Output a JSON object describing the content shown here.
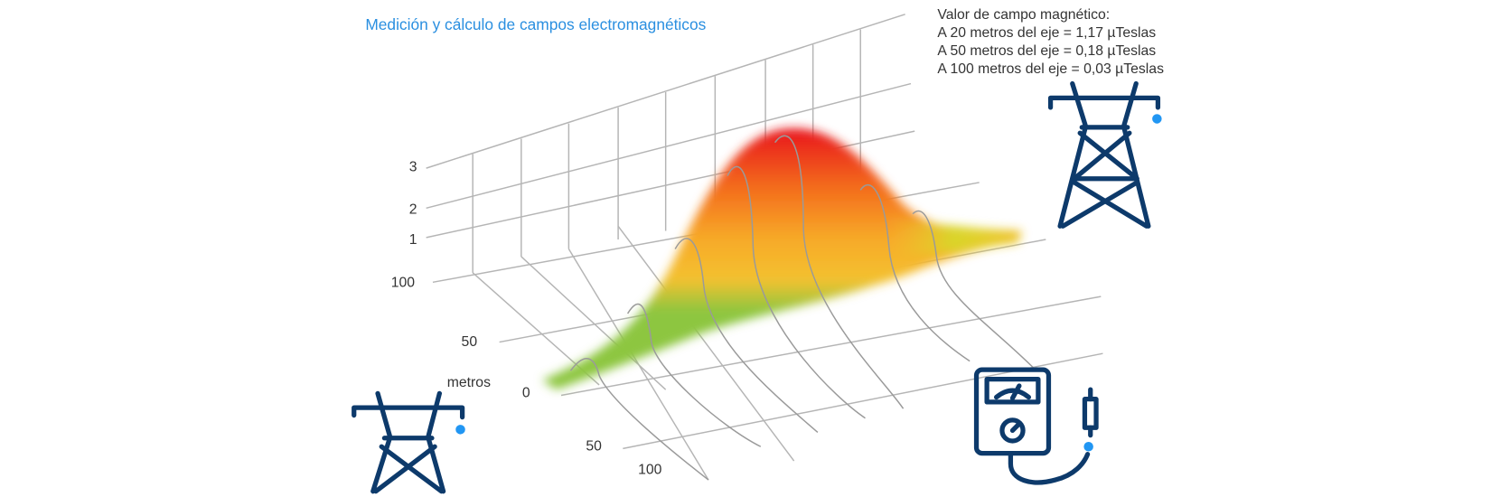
{
  "title": "Medición y cálculo de campos electromagnéticos",
  "info": {
    "heading": "Valor de campo magnético:",
    "lines": [
      "A 20 metros del eje = 1,17 µTeslas",
      "A 50 metros del eje = 0,18 µTeslas",
      "A 100 metros del eje = 0,03 µTeslas"
    ]
  },
  "axes": {
    "vertical_ticks": [
      "3",
      "2",
      "1"
    ],
    "depth_ticks": [
      "100",
      "50",
      "0"
    ],
    "depth_label": "metros",
    "width_ticks": [
      "50",
      "100"
    ]
  }
}
